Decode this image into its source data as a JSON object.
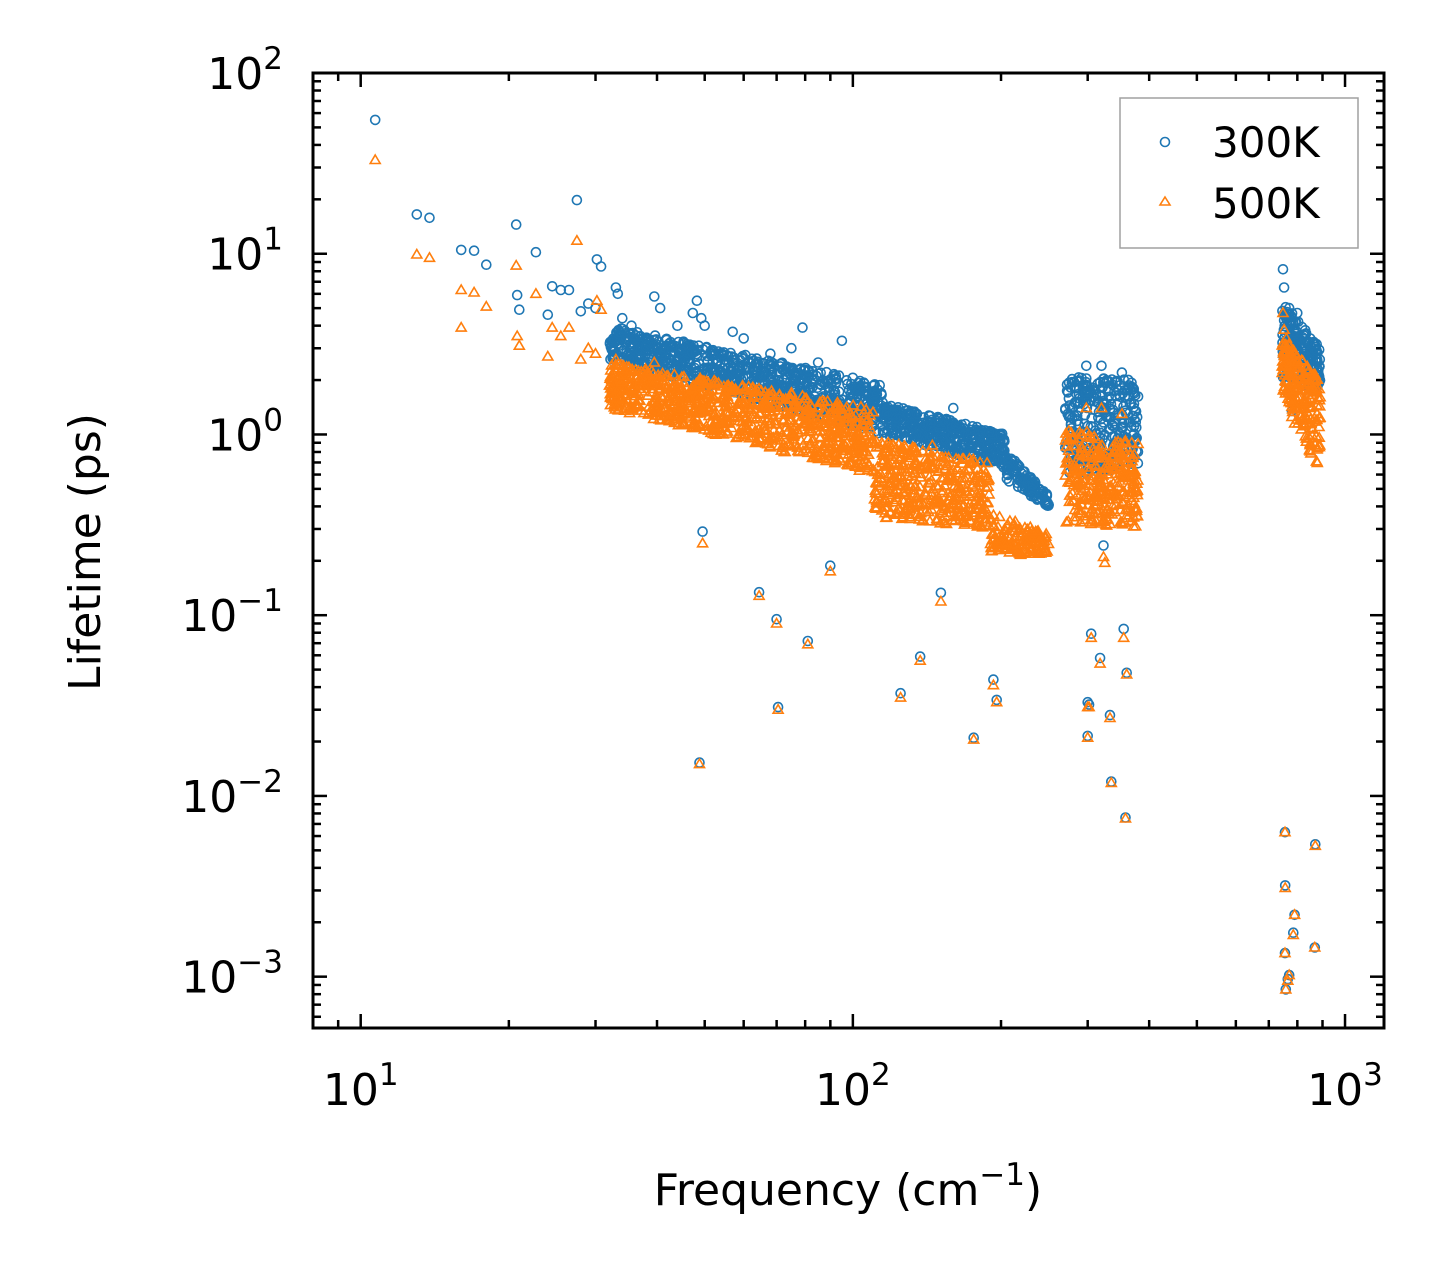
{
  "chart_data": {
    "type": "scatter",
    "title": "",
    "xlabel": "Frequency (cm",
    "xlabel_sup": "−1",
    "xlabel_suffix": ")",
    "ylabel": "Lifetime (ps)",
    "xscale": "log",
    "yscale": "log",
    "xlim": [
      8,
      1200
    ],
    "ylim": [
      0.00052,
      100
    ],
    "x_ticks": [
      {
        "value": 10,
        "base": "10",
        "exp": "1"
      },
      {
        "value": 100,
        "base": "10",
        "exp": "2"
      },
      {
        "value": 1000,
        "base": "10",
        "exp": "3"
      }
    ],
    "y_ticks": [
      {
        "value": 0.001,
        "base": "10",
        "exp": "−3"
      },
      {
        "value": 0.01,
        "base": "10",
        "exp": "−2"
      },
      {
        "value": 0.1,
        "base": "10",
        "exp": "−1"
      },
      {
        "value": 1,
        "base": "10",
        "exp": "0"
      },
      {
        "value": 10,
        "base": "10",
        "exp": "1"
      },
      {
        "value": 100,
        "base": "10",
        "exp": "2"
      }
    ],
    "legend_position": "top-right",
    "series": [
      {
        "name": "300K",
        "marker": "circle",
        "color": "#1f77b4",
        "points": [
          [
            10.7,
            55
          ],
          [
            13,
            16.5
          ],
          [
            13.8,
            15.8
          ],
          [
            16,
            10.5
          ],
          [
            17,
            10.4
          ],
          [
            18,
            8.7
          ],
          [
            20.7,
            14.5
          ],
          [
            20.8,
            5.9
          ],
          [
            21,
            4.9
          ],
          [
            22.7,
            10.2
          ],
          [
            24,
            4.6
          ],
          [
            24.5,
            6.6
          ],
          [
            25.5,
            6.3
          ],
          [
            26.5,
            6.3
          ],
          [
            27.5,
            19.8
          ],
          [
            28,
            4.8
          ],
          [
            29,
            5.3
          ],
          [
            30,
            5.0
          ],
          [
            30.2,
            9.3
          ],
          [
            30.8,
            8.5
          ],
          [
            33,
            6.5
          ],
          [
            33.3,
            6.0
          ],
          [
            34,
            4.4
          ],
          [
            35.5,
            4.0
          ],
          [
            37,
            3.5
          ],
          [
            39.5,
            5.8
          ],
          [
            40.6,
            5.0
          ],
          [
            44,
            4.0
          ],
          [
            47.3,
            4.7
          ],
          [
            48.2,
            5.5
          ],
          [
            49.2,
            4.4
          ],
          [
            50,
            4.0
          ],
          [
            57,
            3.7
          ],
          [
            60,
            3.4
          ],
          [
            68,
            2.8
          ],
          [
            75,
            3.0
          ],
          [
            79,
            3.9
          ],
          [
            85,
            2.5
          ],
          [
            95,
            3.3
          ],
          [
            115,
            1.5
          ],
          [
            135,
            1.3
          ],
          [
            160,
            1.4
          ],
          [
            49.5,
            0.29
          ],
          [
            64.5,
            0.134
          ],
          [
            70,
            0.095
          ],
          [
            81,
            0.072
          ],
          [
            90,
            0.188
          ],
          [
            125,
            0.037
          ],
          [
            137,
            0.059
          ],
          [
            151,
            0.133
          ],
          [
            176,
            0.021
          ],
          [
            193,
            0.044
          ],
          [
            196,
            0.034
          ],
          [
            48.8,
            0.0153
          ],
          [
            70.5,
            0.031
          ],
          [
            298,
            2.4
          ],
          [
            320,
            2.4
          ],
          [
            352,
            2.2
          ],
          [
            323,
            0.243
          ],
          [
            305,
            0.079
          ],
          [
            318,
            0.058
          ],
          [
            355,
            0.084
          ],
          [
            360,
            0.048
          ],
          [
            300,
            0.033
          ],
          [
            302,
            0.032
          ],
          [
            300,
            0.0215
          ],
          [
            333,
            0.028
          ],
          [
            335,
            0.012
          ],
          [
            358,
            0.0076
          ],
          [
            748,
            8.2
          ],
          [
            752,
            6.5
          ],
          [
            770,
            5.0
          ],
          [
            800,
            4.7
          ],
          [
            860,
            3.2
          ],
          [
            880,
            2.5
          ],
          [
            780,
            1.35
          ],
          [
            755,
            0.0063
          ],
          [
            756,
            0.0032
          ],
          [
            790,
            0.0022
          ],
          [
            785,
            0.00175
          ],
          [
            755,
            0.00135
          ],
          [
            770,
            0.00102
          ],
          [
            765,
            0.00097
          ],
          [
            758,
            0.00085
          ],
          [
            870,
            0.0054
          ],
          [
            868,
            0.00145
          ]
        ],
        "bands": [
          {
            "x": [
              32,
              115
            ],
            "y_low": [
              2.6,
              1.0
            ],
            "y_high": [
              4.0,
              1.9
            ],
            "n": 900
          },
          {
            "x": [
              115,
              205
            ],
            "y_low": [
              1.0,
              0.65
            ],
            "y_high": [
              1.5,
              1.0
            ],
            "n": 420
          },
          {
            "x": [
              205,
              250
            ],
            "y_low": [
              0.55,
              0.4
            ],
            "y_high": [
              0.8,
              0.46
            ],
            "n": 120
          },
          {
            "x": [
              270,
              380
            ],
            "y_low": [
              0.6,
              0.65
            ],
            "y_high": [
              2.1,
              2.0
            ],
            "n": 320
          },
          {
            "x": [
              745,
              890
            ],
            "y_low": [
              2.0,
              1.8
            ],
            "y_high": [
              5.5,
              3.0
            ],
            "n": 220
          }
        ]
      },
      {
        "name": "500K",
        "marker": "triangle",
        "color": "#ff7f0e",
        "points": [
          [
            10.7,
            33
          ],
          [
            13,
            9.9
          ],
          [
            13.8,
            9.5
          ],
          [
            16,
            6.3
          ],
          [
            16,
            3.9
          ],
          [
            17,
            6.1
          ],
          [
            18,
            5.1
          ],
          [
            20.7,
            8.6
          ],
          [
            20.8,
            3.5
          ],
          [
            21,
            3.1
          ],
          [
            22.7,
            6.0
          ],
          [
            24,
            2.7
          ],
          [
            24.5,
            3.9
          ],
          [
            25.5,
            3.5
          ],
          [
            26.5,
            3.9
          ],
          [
            27.5,
            11.8
          ],
          [
            28,
            2.6
          ],
          [
            29,
            3.0
          ],
          [
            30,
            2.8
          ],
          [
            30.2,
            5.5
          ],
          [
            30.8,
            4.9
          ],
          [
            33,
            2.6
          ],
          [
            34,
            2.3
          ],
          [
            37,
            2.0
          ],
          [
            39.5,
            2.5
          ],
          [
            47,
            1.8
          ],
          [
            50,
            1.6
          ],
          [
            75,
            1.7
          ],
          [
            100,
            1.05
          ],
          [
            145,
            0.87
          ],
          [
            49.5,
            0.25
          ],
          [
            64.5,
            0.128
          ],
          [
            70,
            0.09
          ],
          [
            81,
            0.069
          ],
          [
            90,
            0.175
          ],
          [
            125,
            0.035
          ],
          [
            137,
            0.056
          ],
          [
            151,
            0.119
          ],
          [
            176,
            0.0205
          ],
          [
            193,
            0.041
          ],
          [
            196,
            0.033
          ],
          [
            48.8,
            0.015
          ],
          [
            70.5,
            0.03
          ],
          [
            298,
            1.4
          ],
          [
            320,
            1.4
          ],
          [
            352,
            1.3
          ],
          [
            323,
            0.21
          ],
          [
            325,
            0.195
          ],
          [
            305,
            0.075
          ],
          [
            318,
            0.054
          ],
          [
            355,
            0.075
          ],
          [
            360,
            0.047
          ],
          [
            300,
            0.031
          ],
          [
            302,
            0.031
          ],
          [
            300,
            0.021
          ],
          [
            333,
            0.027
          ],
          [
            335,
            0.0118
          ],
          [
            358,
            0.0075
          ],
          [
            748,
            4.7
          ],
          [
            752,
            3.8
          ],
          [
            760,
            3.4
          ],
          [
            780,
            1.25
          ],
          [
            790,
            1.15
          ],
          [
            755,
            0.0063
          ],
          [
            756,
            0.0031
          ],
          [
            790,
            0.0022
          ],
          [
            785,
            0.0017
          ],
          [
            755,
            0.00135
          ],
          [
            770,
            0.00102
          ],
          [
            765,
            0.00095
          ],
          [
            758,
            0.00085
          ],
          [
            870,
            0.0053
          ],
          [
            868,
            0.00145
          ]
        ],
        "bands": [
          {
            "x": [
              32,
              110
            ],
            "y_low": [
              1.4,
              0.6
            ],
            "y_high": [
              2.5,
              1.4
            ],
            "n": 900
          },
          {
            "x": [
              110,
              190
            ],
            "y_low": [
              0.35,
              0.3
            ],
            "y_high": [
              0.95,
              0.7
            ],
            "n": 420
          },
          {
            "x": [
              190,
              250
            ],
            "y_low": [
              0.21,
              0.22
            ],
            "y_high": [
              0.38,
              0.28
            ],
            "n": 140
          },
          {
            "x": [
              270,
              380
            ],
            "y_low": [
              0.32,
              0.3
            ],
            "y_high": [
              1.1,
              0.9
            ],
            "n": 320
          },
          {
            "x": [
              745,
              890
            ],
            "y_low": [
              1.8,
              0.6
            ],
            "y_high": [
              3.5,
              2.0
            ],
            "n": 220
          }
        ]
      }
    ]
  }
}
